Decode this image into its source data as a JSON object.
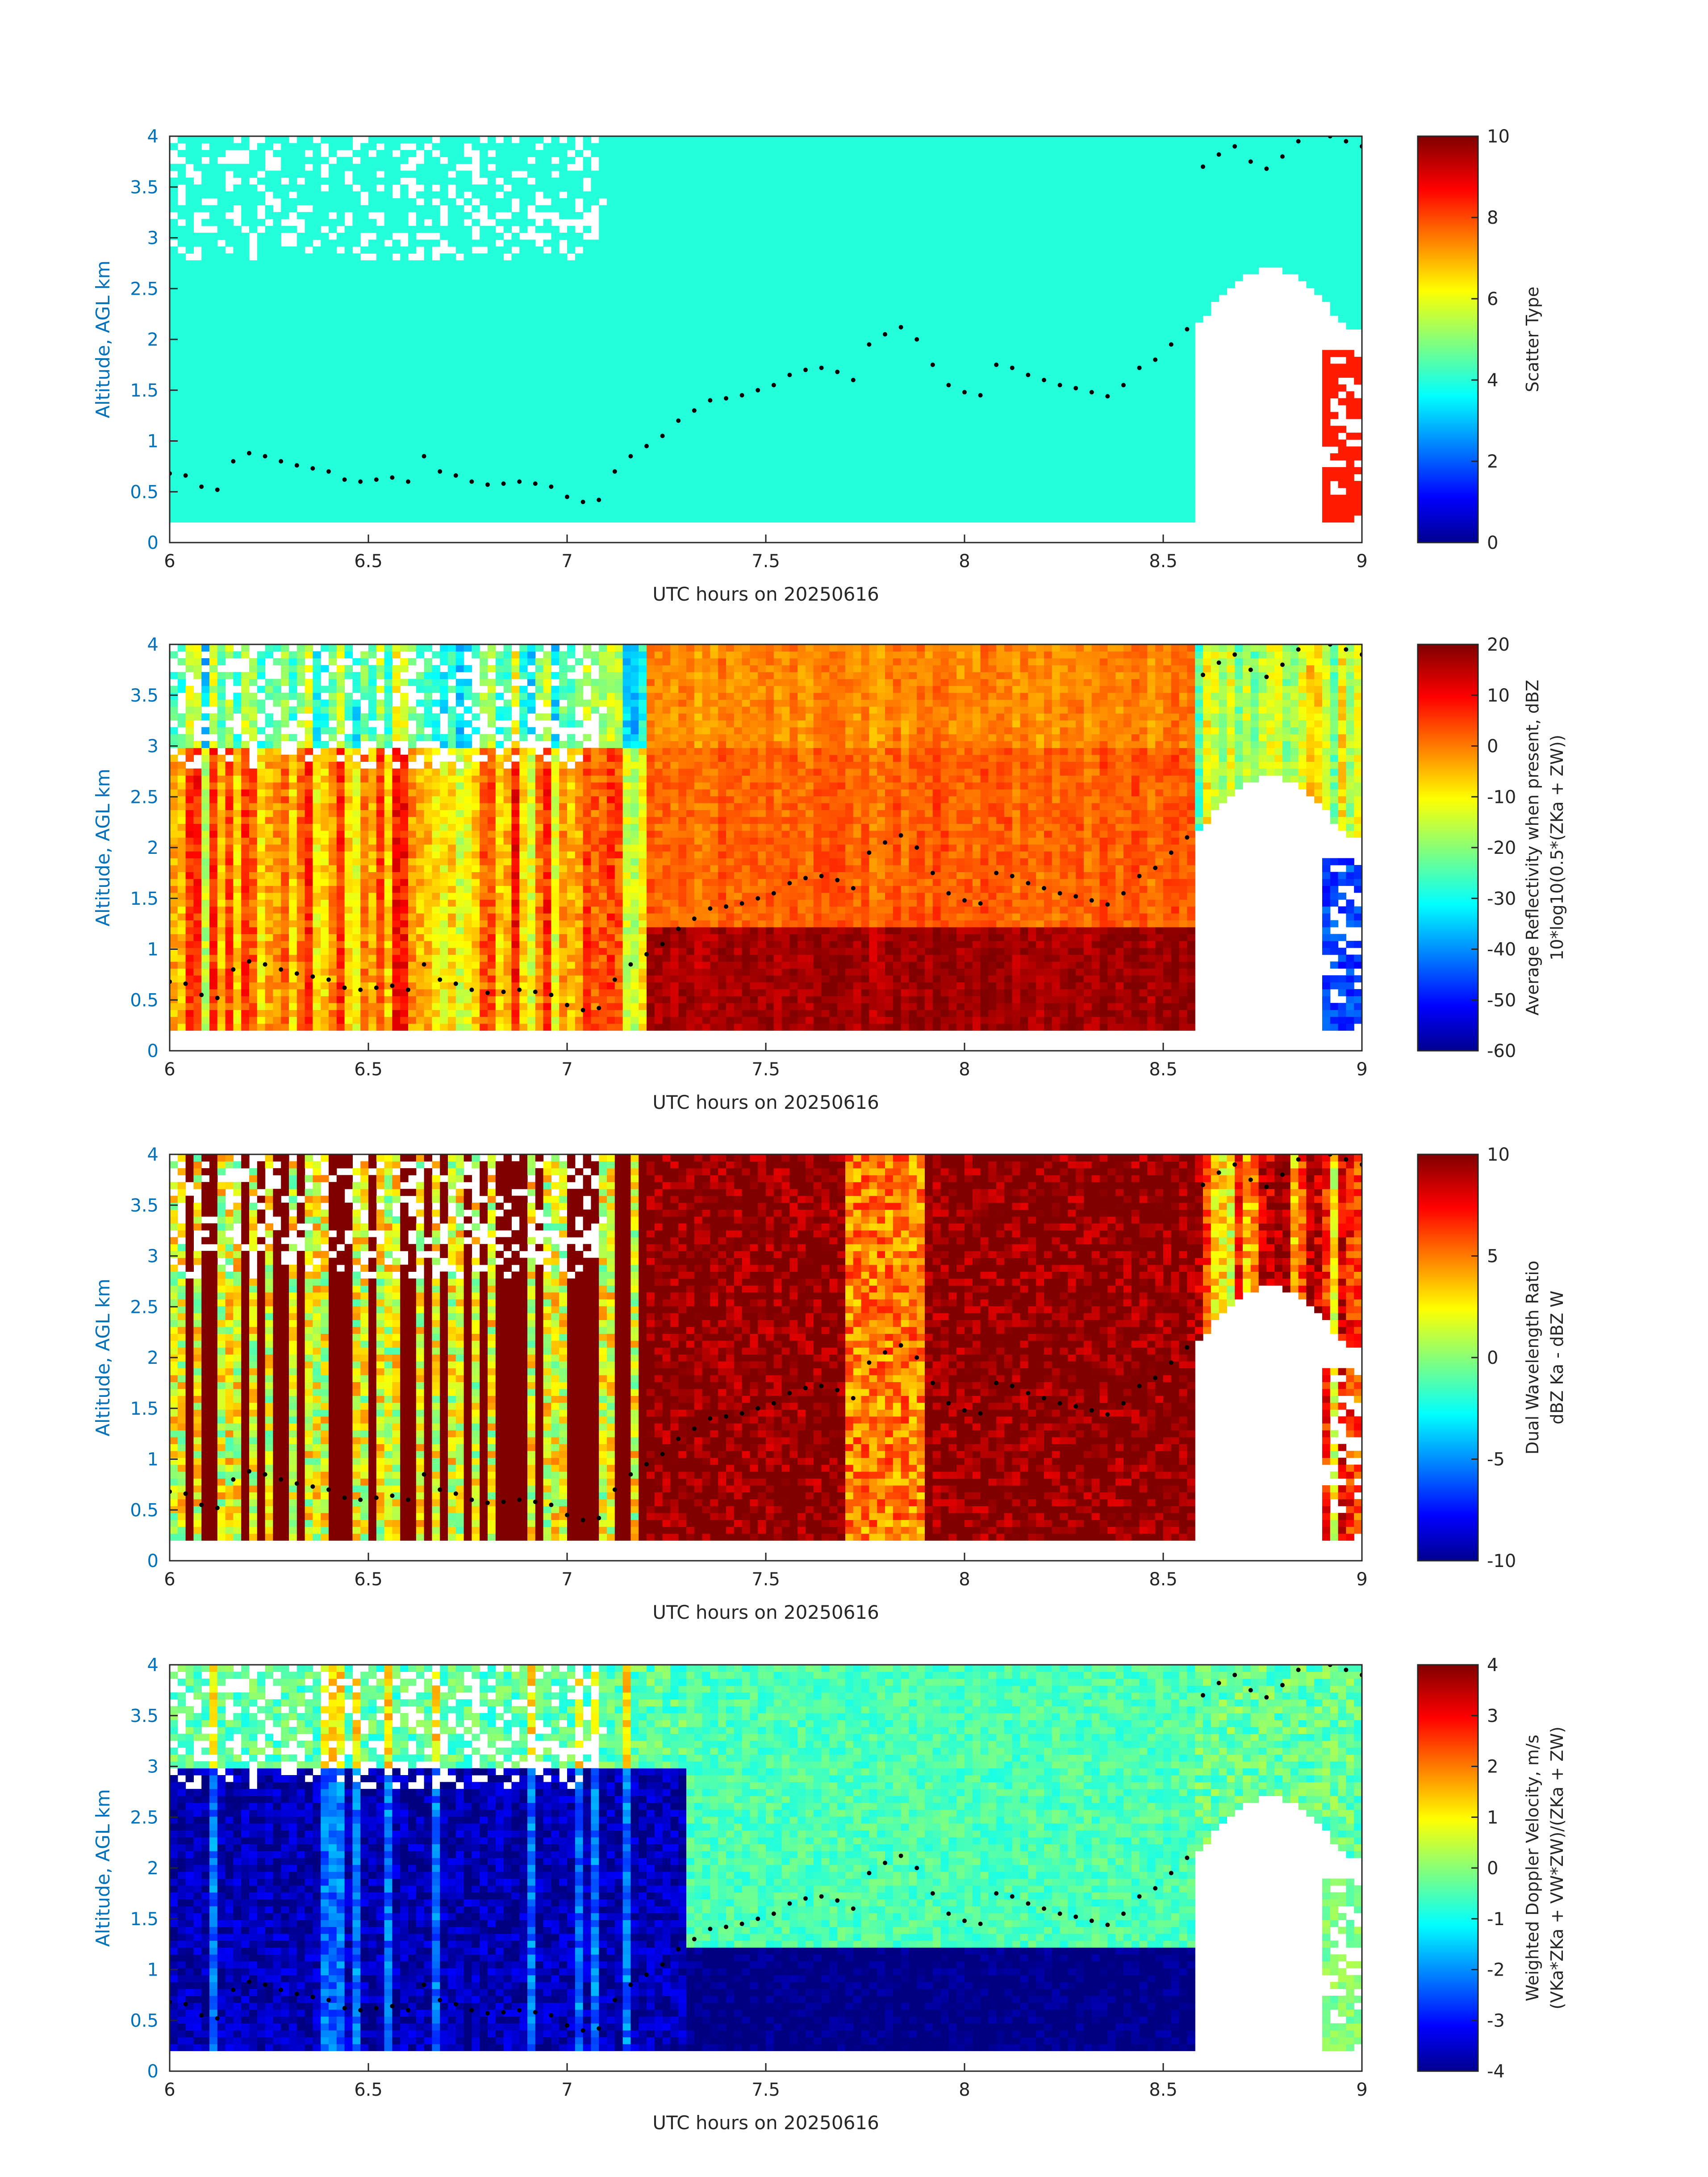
{
  "chart_data": [
    {
      "type": "heatmap",
      "name": "scatter-type",
      "xlabel": "UTC hours on 20250616",
      "ylabel": "Altitude, AGL km",
      "xlim": [
        6,
        9
      ],
      "ylim": [
        0,
        4
      ],
      "xticks": [
        "6",
        "6.5",
        "7",
        "7.5",
        "8",
        "8.5",
        "9"
      ],
      "yticks": [
        "0",
        "0.5",
        "1",
        "1.5",
        "2",
        "2.5",
        "3",
        "3.5",
        "4"
      ],
      "colorbar": {
        "label_lines": [
          "Scatter Type"
        ],
        "clim": [
          0,
          10
        ],
        "ticks": [
          "0",
          "2",
          "4",
          "6",
          "8",
          "10"
        ]
      },
      "colormap": "jet"
    },
    {
      "type": "heatmap",
      "name": "average-reflectivity",
      "xlabel": "UTC hours on 20250616",
      "ylabel": "Altitude, AGL km",
      "xlim": [
        6,
        9
      ],
      "ylim": [
        0,
        4
      ],
      "xticks": [
        "6",
        "6.5",
        "7",
        "7.5",
        "8",
        "8.5",
        "9"
      ],
      "yticks": [
        "0",
        "0.5",
        "1",
        "1.5",
        "2",
        "2.5",
        "3",
        "3.5",
        "4"
      ],
      "colorbar": {
        "label_lines": [
          "Average Reflectivity when present, dBZ",
          "10*log10(0.5*(ZKa + ZW))"
        ],
        "clim": [
          -60,
          20
        ],
        "ticks": [
          "-60",
          "-50",
          "-40",
          "-30",
          "-20",
          "-10",
          "0",
          "10",
          "20"
        ]
      },
      "colormap": "jet"
    },
    {
      "type": "heatmap",
      "name": "dual-wavelength-ratio",
      "xlabel": "UTC hours on 20250616",
      "ylabel": "Altitude, AGL km",
      "xlim": [
        6,
        9
      ],
      "ylim": [
        0,
        4
      ],
      "xticks": [
        "6",
        "6.5",
        "7",
        "7.5",
        "8",
        "8.5",
        "9"
      ],
      "yticks": [
        "0",
        "0.5",
        "1",
        "1.5",
        "2",
        "2.5",
        "3",
        "3.5",
        "4"
      ],
      "colorbar": {
        "label_lines": [
          "Dual Wavelength Ratio",
          "dBZ Ka - dBZ W"
        ],
        "clim": [
          -10,
          10
        ],
        "ticks": [
          "-10",
          "-5",
          "0",
          "5",
          "10"
        ]
      },
      "colormap": "jet"
    },
    {
      "type": "heatmap",
      "name": "weighted-doppler-velocity",
      "xlabel": "UTC hours on 20250616",
      "ylabel": "Altitude, AGL km",
      "xlim": [
        6,
        9
      ],
      "ylim": [
        0,
        4
      ],
      "xticks": [
        "6",
        "6.5",
        "7",
        "7.5",
        "8",
        "8.5",
        "9"
      ],
      "yticks": [
        "0",
        "0.5",
        "1",
        "1.5",
        "2",
        "2.5",
        "3",
        "3.5",
        "4"
      ],
      "colorbar": {
        "label_lines": [
          "Weighted Doppler Velocity, m/s",
          "(VKa*ZKa + VW*ZW)/(ZKa + ZW)"
        ],
        "clim": [
          -4,
          4
        ],
        "ticks": [
          "-4",
          "-3",
          "-2",
          "-1",
          "0",
          "1",
          "2",
          "3",
          "4"
        ]
      },
      "colormap": "jet"
    }
  ],
  "overlay_points": {
    "description_series": "cloud-base",
    "t": [
      6.0,
      6.04,
      6.08,
      6.12,
      6.16,
      6.2,
      6.24,
      6.28,
      6.32,
      6.36,
      6.4,
      6.44,
      6.48,
      6.52,
      6.56,
      6.6,
      6.64,
      6.68,
      6.72,
      6.76,
      6.8,
      6.84,
      6.88,
      6.92,
      6.96,
      7.0,
      7.04,
      7.08,
      7.12,
      7.16,
      7.2,
      7.24,
      7.28,
      7.32,
      7.36,
      7.4,
      7.44,
      7.48,
      7.52,
      7.56,
      7.6,
      7.64,
      7.68,
      7.72,
      7.76,
      7.8,
      7.84,
      7.88,
      7.92,
      7.96,
      8.0,
      8.04,
      8.08,
      8.12,
      8.16,
      8.2,
      8.24,
      8.28,
      8.32,
      8.36,
      8.4,
      8.44,
      8.48,
      8.52,
      8.56,
      8.6,
      8.64,
      8.68,
      8.72,
      8.76,
      8.8,
      8.84,
      8.88,
      8.92,
      8.96,
      9.0
    ],
    "h": [
      0.68,
      0.66,
      0.55,
      0.52,
      0.8,
      0.88,
      0.85,
      0.8,
      0.76,
      0.73,
      0.7,
      0.62,
      0.6,
      0.62,
      0.64,
      0.6,
      0.85,
      0.7,
      0.66,
      0.6,
      0.57,
      0.58,
      0.6,
      0.58,
      0.55,
      0.45,
      0.4,
      0.42,
      0.7,
      0.85,
      0.95,
      1.05,
      1.2,
      1.3,
      1.4,
      1.42,
      1.45,
      1.5,
      1.55,
      1.65,
      1.7,
      1.72,
      1.68,
      1.6,
      1.95,
      2.05,
      2.12,
      2.0,
      1.75,
      1.55,
      1.48,
      1.45,
      1.75,
      1.72,
      1.65,
      1.6,
      1.55,
      1.52,
      1.48,
      1.44,
      1.55,
      1.72,
      1.8,
      1.95,
      2.1,
      3.7,
      3.82,
      3.9,
      3.75,
      3.68,
      3.8,
      3.95,
      4.05,
      4.0,
      3.95,
      3.9
    ]
  }
}
